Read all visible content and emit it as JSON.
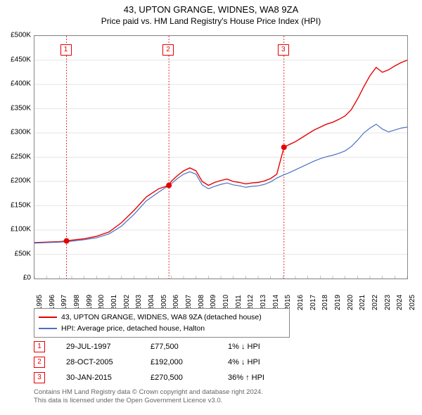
{
  "title": "43, UPTON GRANGE, WIDNES, WA8 9ZA",
  "subtitle": "Price paid vs. HM Land Registry's House Price Index (HPI)",
  "chart": {
    "type": "line",
    "background_color": "#ffffff",
    "border_color": "#888888",
    "grid_color": "#cccccc",
    "xlim": [
      1995,
      2025
    ],
    "ylim": [
      0,
      500000
    ],
    "ytick_step": 50000,
    "yticks": [
      "£0",
      "£50K",
      "£100K",
      "£150K",
      "£200K",
      "£250K",
      "£300K",
      "£350K",
      "£400K",
      "£450K",
      "£500K"
    ],
    "xticks": [
      "1995",
      "1996",
      "1997",
      "1998",
      "1999",
      "2000",
      "2001",
      "2002",
      "2003",
      "2004",
      "2005",
      "2006",
      "2007",
      "2008",
      "2009",
      "2010",
      "2011",
      "2012",
      "2013",
      "2014",
      "2015",
      "2016",
      "2017",
      "2018",
      "2019",
      "2020",
      "2021",
      "2022",
      "2023",
      "2024",
      "2025"
    ],
    "title_fontsize": 13,
    "label_fontsize": 10,
    "series": [
      {
        "name": "price_paid",
        "label": "43, UPTON GRANGE, WIDNES, WA8 9ZA (detached house)",
        "color": "#e60000",
        "line_width": 1.4,
        "data": [
          [
            1995,
            74000
          ],
          [
            1996,
            75000
          ],
          [
            1997,
            76000
          ],
          [
            1997.58,
            77500
          ],
          [
            1998,
            79000
          ],
          [
            1999,
            82000
          ],
          [
            2000,
            87000
          ],
          [
            2001,
            96000
          ],
          [
            2002,
            115000
          ],
          [
            2003,
            140000
          ],
          [
            2004,
            168000
          ],
          [
            2005,
            185000
          ],
          [
            2005.82,
            192000
          ],
          [
            2006,
            200000
          ],
          [
            2006.5,
            212000
          ],
          [
            2007,
            222000
          ],
          [
            2007.5,
            228000
          ],
          [
            2008,
            222000
          ],
          [
            2008.5,
            200000
          ],
          [
            2009,
            192000
          ],
          [
            2009.5,
            198000
          ],
          [
            2010,
            202000
          ],
          [
            2010.5,
            205000
          ],
          [
            2011,
            200000
          ],
          [
            2011.5,
            198000
          ],
          [
            2012,
            195000
          ],
          [
            2012.5,
            197000
          ],
          [
            2013,
            198000
          ],
          [
            2013.5,
            201000
          ],
          [
            2014,
            206000
          ],
          [
            2014.5,
            215000
          ],
          [
            2015.08,
            270500
          ],
          [
            2015.5,
            276000
          ],
          [
            2016,
            282000
          ],
          [
            2016.5,
            290000
          ],
          [
            2017,
            298000
          ],
          [
            2017.5,
            306000
          ],
          [
            2018,
            312000
          ],
          [
            2018.5,
            318000
          ],
          [
            2019,
            322000
          ],
          [
            2019.5,
            328000
          ],
          [
            2020,
            335000
          ],
          [
            2020.5,
            348000
          ],
          [
            2021,
            370000
          ],
          [
            2021.5,
            395000
          ],
          [
            2022,
            418000
          ],
          [
            2022.5,
            435000
          ],
          [
            2023,
            425000
          ],
          [
            2023.5,
            430000
          ],
          [
            2024,
            438000
          ],
          [
            2024.5,
            445000
          ],
          [
            2025,
            450000
          ]
        ]
      },
      {
        "name": "hpi",
        "label": "HPI: Average price, detached house, Halton",
        "color": "#4a72c4",
        "line_width": 1.2,
        "data": [
          [
            1995,
            73000
          ],
          [
            1996,
            74000
          ],
          [
            1997,
            75000
          ],
          [
            1998,
            77000
          ],
          [
            1999,
            80000
          ],
          [
            2000,
            84000
          ],
          [
            2001,
            92000
          ],
          [
            2002,
            108000
          ],
          [
            2003,
            132000
          ],
          [
            2004,
            160000
          ],
          [
            2005,
            178000
          ],
          [
            2006,
            195000
          ],
          [
            2006.5,
            206000
          ],
          [
            2007,
            215000
          ],
          [
            2007.5,
            220000
          ],
          [
            2008,
            215000
          ],
          [
            2008.5,
            193000
          ],
          [
            2009,
            185000
          ],
          [
            2009.5,
            190000
          ],
          [
            2010,
            194000
          ],
          [
            2010.5,
            197000
          ],
          [
            2011,
            193000
          ],
          [
            2011.5,
            191000
          ],
          [
            2012,
            188000
          ],
          [
            2012.5,
            190000
          ],
          [
            2013,
            191000
          ],
          [
            2013.5,
            194000
          ],
          [
            2014,
            199000
          ],
          [
            2014.5,
            207000
          ],
          [
            2015,
            213000
          ],
          [
            2015.5,
            218000
          ],
          [
            2016,
            224000
          ],
          [
            2016.5,
            230000
          ],
          [
            2017,
            236000
          ],
          [
            2017.5,
            242000
          ],
          [
            2018,
            247000
          ],
          [
            2018.5,
            251000
          ],
          [
            2019,
            254000
          ],
          [
            2019.5,
            258000
          ],
          [
            2020,
            263000
          ],
          [
            2020.5,
            272000
          ],
          [
            2021,
            285000
          ],
          [
            2021.5,
            300000
          ],
          [
            2022,
            310000
          ],
          [
            2022.5,
            318000
          ],
          [
            2023,
            308000
          ],
          [
            2023.5,
            302000
          ],
          [
            2024,
            306000
          ],
          [
            2024.5,
            310000
          ],
          [
            2025,
            312000
          ]
        ]
      }
    ],
    "reference_lines": [
      {
        "x": 1997.58,
        "color": "#e60000",
        "dash": "2,2"
      },
      {
        "x": 2005.82,
        "color": "#e60000",
        "dash": "2,2"
      },
      {
        "x": 2015.08,
        "color": "#e60000",
        "dash": "2,2"
      }
    ],
    "markers": [
      {
        "n": "1",
        "x": 1997.58,
        "y_box": 470000,
        "point_y": 77500,
        "color": "#e60000"
      },
      {
        "n": "2",
        "x": 2005.82,
        "y_box": 470000,
        "point_y": 192000,
        "color": "#e60000"
      },
      {
        "n": "3",
        "x": 2015.08,
        "y_box": 470000,
        "point_y": 270500,
        "color": "#e60000"
      }
    ]
  },
  "legend": {
    "items": [
      {
        "color": "#e60000",
        "label": "43, UPTON GRANGE, WIDNES, WA8 9ZA (detached house)"
      },
      {
        "color": "#4a72c4",
        "label": "HPI: Average price, detached house, Halton"
      }
    ]
  },
  "transactions": [
    {
      "n": "1",
      "color": "#e60000",
      "date": "29-JUL-1997",
      "price": "£77,500",
      "delta": "1% ↓ HPI"
    },
    {
      "n": "2",
      "color": "#e60000",
      "date": "28-OCT-2005",
      "price": "£192,000",
      "delta": "4% ↓ HPI"
    },
    {
      "n": "3",
      "color": "#e60000",
      "date": "30-JAN-2015",
      "price": "£270,500",
      "delta": "36% ↑ HPI"
    }
  ],
  "footer": {
    "line1": "Contains HM Land Registry data © Crown copyright and database right 2024.",
    "line2": "This data is licensed under the Open Government Licence v3.0."
  }
}
